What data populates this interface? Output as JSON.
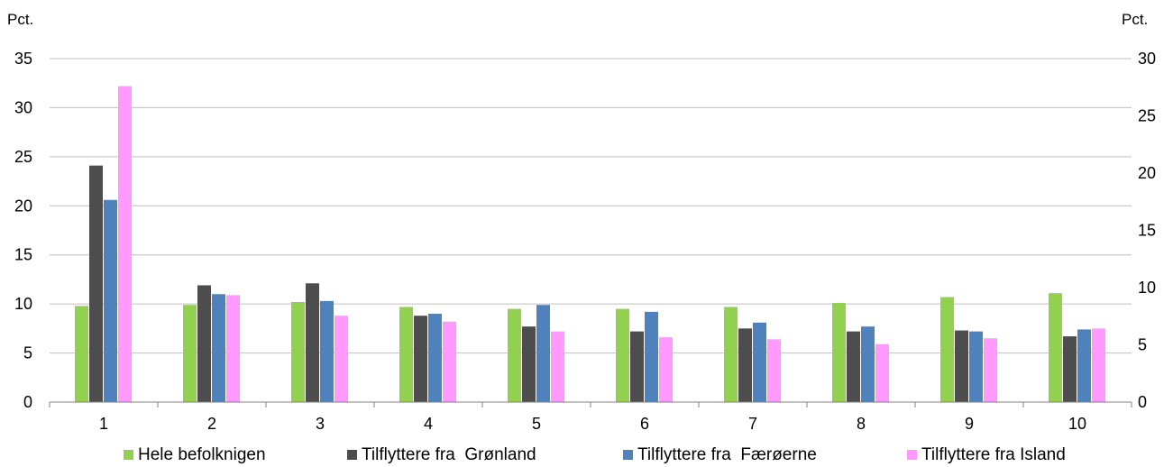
{
  "chart_data": {
    "type": "bar",
    "title": "",
    "xlabel": "",
    "ylabel": "Pct.",
    "ylabel_right": "Pct.",
    "ylim": [
      0,
      35
    ],
    "ylim_right": [
      0,
      30
    ],
    "yticks": [
      0,
      5,
      10,
      15,
      20,
      25,
      30,
      35
    ],
    "yticks_right": [
      0,
      5,
      10,
      15,
      20,
      25,
      30
    ],
    "categories": [
      "1",
      "2",
      "3",
      "4",
      "5",
      "6",
      "7",
      "8",
      "9",
      "10"
    ],
    "series": [
      {
        "name": "Hele befolknigen",
        "color": "#92d050",
        "values": [
          9.8,
          9.9,
          10.2,
          9.7,
          9.5,
          9.5,
          9.7,
          10.1,
          10.7,
          11.1
        ]
      },
      {
        "name": "Tilflyttere fra  Grønland",
        "color": "#4d4d4d",
        "values": [
          24.1,
          11.9,
          12.1,
          8.8,
          7.7,
          7.2,
          7.5,
          7.2,
          7.3,
          6.7
        ]
      },
      {
        "name": "Tilflyttere fra  Færøerne",
        "color": "#4f81bd",
        "values": [
          20.6,
          11.0,
          10.3,
          9.0,
          9.9,
          9.2,
          8.1,
          7.7,
          7.2,
          7.4
        ]
      },
      {
        "name": "Tilflyttere fra Island",
        "color": "#ff99ff",
        "values": [
          32.2,
          10.9,
          8.8,
          8.2,
          7.2,
          6.6,
          6.4,
          5.9,
          6.5,
          7.5
        ]
      }
    ],
    "grid": true,
    "legend_position": "bottom"
  }
}
